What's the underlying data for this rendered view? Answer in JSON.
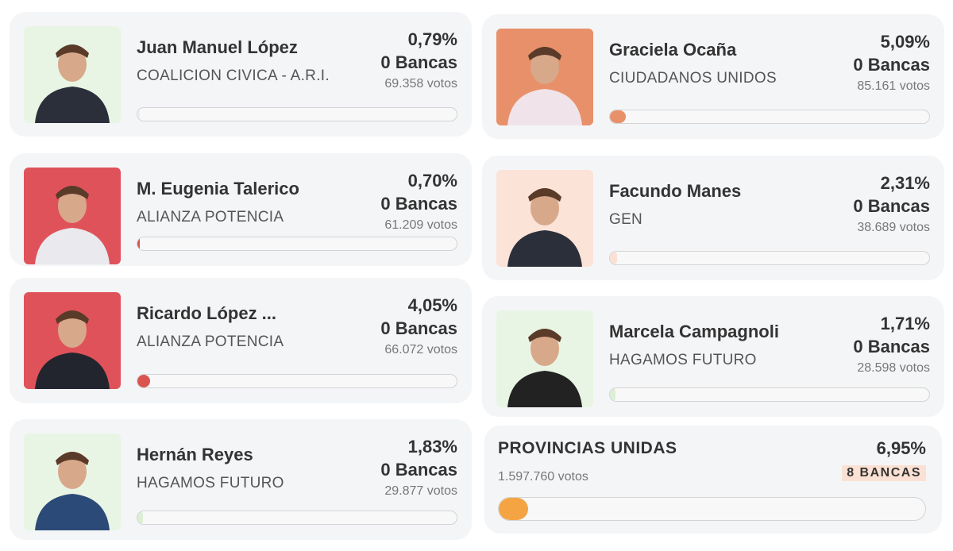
{
  "cards": [
    {
      "name": "Juan Manuel López",
      "party": "COALICION CIVICA - A.R.I.",
      "percent": 0.79,
      "percent_label": "0,79%",
      "seats": "0 Bancas",
      "votes": "69.358 votos",
      "color": "#eeeeee"
    },
    {
      "name": "M. Eugenia Talerico",
      "party": "ALIANZA POTENCIA",
      "percent": 0.7,
      "percent_label": "0,70%",
      "seats": "0 Bancas",
      "votes": "61.209 votos",
      "color": "#d9534f"
    },
    {
      "name": "Ricardo López ...",
      "party": "ALIANZA POTENCIA",
      "percent": 4.05,
      "percent_label": "4,05%",
      "seats": "0 Bancas",
      "votes": "66.072 votos",
      "color": "#d9534f"
    },
    {
      "name": "Hernán Reyes",
      "party": "HAGAMOS FUTURO",
      "percent": 1.83,
      "percent_label": "1,83%",
      "seats": "0 Bancas",
      "votes": "29.877 votos",
      "color": "#dcefd6"
    },
    {
      "name": "Graciela Ocaña",
      "party": "CIUDADANOS UNIDOS",
      "percent": 5.09,
      "percent_label": "5,09%",
      "seats": "0 Bancas",
      "votes": "85.161 votos",
      "color": "#e8906a"
    },
    {
      "name": "Facundo Manes",
      "party": "GEN",
      "percent": 2.31,
      "percent_label": "2,31%",
      "seats": "0 Bancas",
      "votes": "38.689 votos",
      "color": "#fbe1d3"
    },
    {
      "name": "Marcela Campagnoli",
      "party": "HAGAMOS FUTURO",
      "percent": 1.71,
      "percent_label": "1,71%",
      "seats": "0 Bancas",
      "votes": "28.598 votos",
      "color": "#dcefd6"
    }
  ],
  "total": {
    "party": "PROVINCIAS UNIDAS",
    "percent": 6.95,
    "percent_label": "6,95%",
    "seats": "8 BANCAS",
    "votes": "1.597.760 votos",
    "color": "#f4a443"
  }
}
